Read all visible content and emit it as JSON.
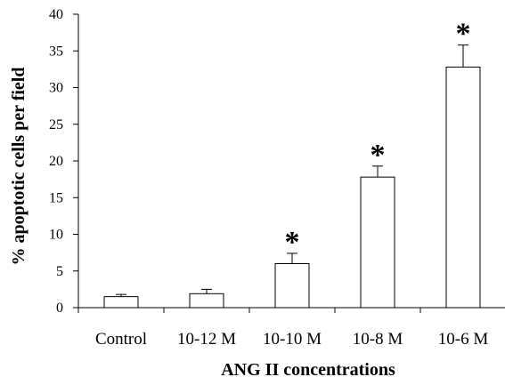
{
  "chart_data": {
    "type": "bar",
    "categories": [
      "Control",
      "10-12 M",
      "10-10 M",
      "10-8 M",
      "10-6 M"
    ],
    "values": [
      1.5,
      1.9,
      6.0,
      17.8,
      32.8
    ],
    "errors": [
      0.3,
      0.6,
      1.4,
      1.5,
      3.0
    ],
    "annotations": [
      "",
      "",
      "*",
      "*",
      "*"
    ],
    "xlabel": "ANG II concentrations",
    "ylabel": "% apoptotic cells per field",
    "ylim": [
      0,
      40
    ],
    "yticks": [
      "0",
      "5",
      "10",
      "15",
      "20",
      "25",
      "30",
      "35",
      "40"
    ],
    "grid": false,
    "bar_fill": "#ffffff",
    "bar_stroke": "#000000"
  }
}
